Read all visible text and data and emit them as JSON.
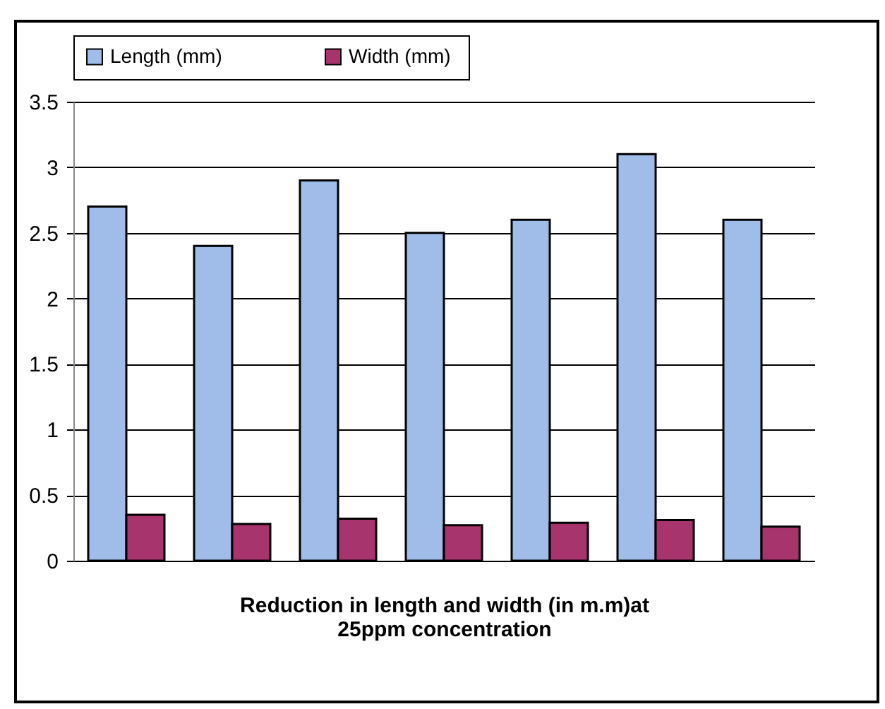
{
  "chart_data": {
    "type": "bar",
    "categories": [
      null,
      null,
      null,
      null,
      null,
      null,
      null
    ],
    "series": [
      {
        "name": "Length (mm)",
        "color": "#9fbde8",
        "values": [
          2.7,
          2.4,
          2.9,
          2.5,
          2.6,
          3.1,
          2.6
        ]
      },
      {
        "name": "Width  (mm)",
        "color": "#a8346e",
        "values": [
          0.35,
          0.28,
          0.32,
          0.27,
          0.29,
          0.31,
          0.26
        ]
      }
    ],
    "xlabel": "Reduction in length and width (in m.m)at 25ppm concentration",
    "ylim": [
      0,
      3.5
    ],
    "yticks": [
      0,
      0.5,
      1,
      1.5,
      2,
      2.5,
      3,
      3.5
    ],
    "grid": "y",
    "legend": "top",
    "tick_labels": "y"
  }
}
